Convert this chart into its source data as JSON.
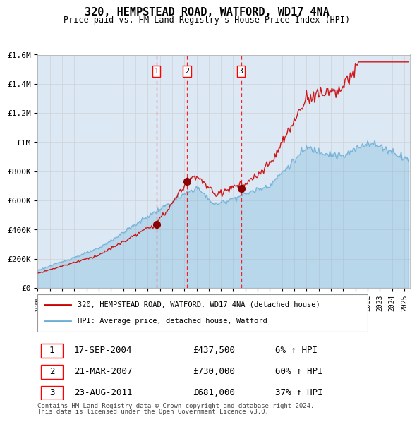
{
  "title": "320, HEMPSTEAD ROAD, WATFORD, WD17 4NA",
  "subtitle": "Price paid vs. HM Land Registry's House Price Index (HPI)",
  "legend_line1": "320, HEMPSTEAD ROAD, WATFORD, WD17 4NA (detached house)",
  "legend_line2": "HPI: Average price, detached house, Watford",
  "transactions": [
    {
      "num": 1,
      "date": "17-SEP-2004",
      "price": 437500,
      "pct": "6%",
      "dir": "↑"
    },
    {
      "num": 2,
      "date": "21-MAR-2007",
      "price": 730000,
      "pct": "60%",
      "dir": "↑"
    },
    {
      "num": 3,
      "date": "23-AUG-2011",
      "price": 681000,
      "pct": "37%",
      "dir": "↑"
    }
  ],
  "transaction_dates_decimal": [
    2004.712,
    2007.22,
    2011.642
  ],
  "footnote1": "Contains HM Land Registry data © Crown copyright and database right 2024.",
  "footnote2": "This data is licensed under the Open Government Licence v3.0.",
  "hpi_color": "#6baed6",
  "price_color": "#cc0000",
  "bg_color": "#dce9f5",
  "plot_bg": "#ffffff",
  "grid_color": "#cccccc",
  "ylim": [
    0,
    1600000
  ],
  "xlim_start": 1995.0,
  "xlim_end": 2025.5
}
